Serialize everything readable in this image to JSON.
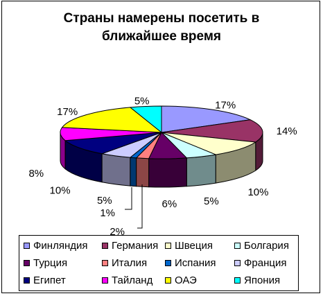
{
  "chart_data": {
    "type": "pie",
    "title": "Страны намерены посетить в ближайшее время",
    "title_lines": [
      "Страны намерены посетить в",
      "ближайшее время"
    ],
    "three_d": true,
    "legend_position": "bottom",
    "slices": [
      {
        "name": "Финляндия",
        "value": 17,
        "label": "17%",
        "color": "#9999ff"
      },
      {
        "name": "Германия",
        "value": 14,
        "label": "14%",
        "color": "#993366"
      },
      {
        "name": "Швеция",
        "value": 10,
        "label": "10%",
        "color": "#ffffcc"
      },
      {
        "name": "Болгария",
        "value": 5,
        "label": "5%",
        "color": "#ccffff"
      },
      {
        "name": "Турция",
        "value": 6,
        "label": "6%",
        "color": "#660066"
      },
      {
        "name": "Италия",
        "value": 2,
        "label": "2%",
        "color": "#ff8080"
      },
      {
        "name": "Испания",
        "value": 1,
        "label": "1%",
        "color": "#0066cc"
      },
      {
        "name": "Франция",
        "value": 5,
        "label": "5%",
        "color": "#ccccff"
      },
      {
        "name": "Египет",
        "value": 10,
        "label": "10%",
        "color": "#000080"
      },
      {
        "name": "Тайланд",
        "value": 8,
        "label": "8%",
        "color": "#ff00ff"
      },
      {
        "name": "ОАЭ",
        "value": 17,
        "label": "17%",
        "color": "#ffff00"
      },
      {
        "name": "Япония",
        "value": 5,
        "label": "5%",
        "color": "#00ffff"
      }
    ]
  }
}
